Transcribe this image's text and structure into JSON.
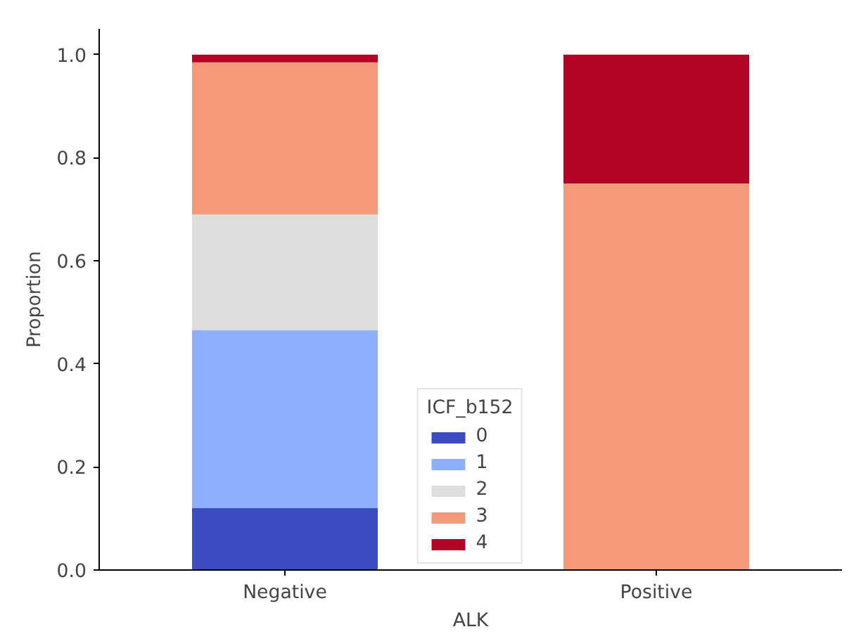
{
  "chart_data": {
    "type": "bar",
    "stacked": true,
    "categories": [
      "Negative",
      "Positive"
    ],
    "xlabel": "ALK",
    "ylabel": "Proportion",
    "legend_title": "ICF_b152",
    "legend": "bottom",
    "grid": false,
    "ylim": [
      0,
      1.05
    ],
    "yticks": [
      {
        "value": 0,
        "label": "0.0"
      },
      {
        "value": 0.2,
        "label": "0.2"
      },
      {
        "value": 0.4,
        "label": "0.4"
      },
      {
        "value": 0.6,
        "label": "0.6"
      },
      {
        "value": 0.8,
        "label": "0.8"
      },
      {
        "value": 1,
        "label": "1.0"
      }
    ],
    "series": [
      {
        "name": "0",
        "color": "#3b4cc0",
        "values": [
          0.12,
          0
        ]
      },
      {
        "name": "1",
        "color": "#8db0fe",
        "values": [
          0.345,
          0
        ]
      },
      {
        "name": "2",
        "color": "#dddddd",
        "values": [
          0.225,
          0
        ]
      },
      {
        "name": "3",
        "color": "#f49a7b",
        "values": [
          0.295,
          0.75
        ]
      },
      {
        "name": "4",
        "color": "#b40426",
        "values": [
          0.015,
          0.25
        ]
      }
    ]
  }
}
